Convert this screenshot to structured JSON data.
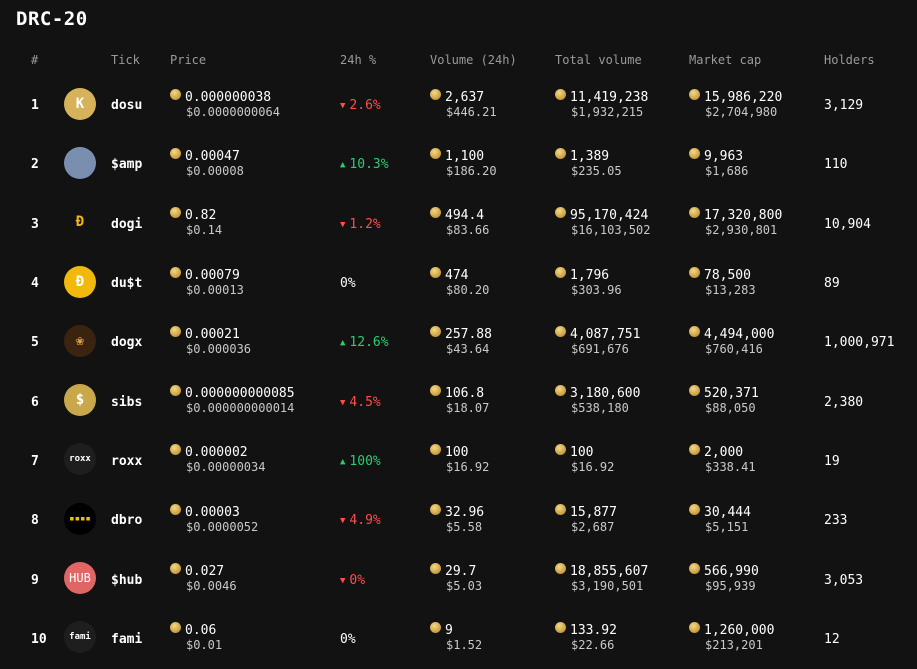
{
  "page": {
    "title": "DRC-20"
  },
  "columns": [
    "#",
    "Tick",
    "Price",
    "24h %",
    "Volume (24h)",
    "Total volume",
    "Market cap",
    "Holders"
  ],
  "colors": {
    "up": "#2ecc71",
    "down": "#ff4d4d",
    "background": "#121212"
  },
  "rows": [
    {
      "rank": "1",
      "tick": "dosu",
      "logo": {
        "text": "K",
        "bg": "#d6b25a",
        "fg": "#ffffff"
      },
      "price": "0.000000038",
      "price_usd": "$0.0000000064",
      "change": "2.6%",
      "change_dir": "down",
      "volume": "2,637",
      "volume_usd": "$446.21",
      "total_volume": "11,419,238",
      "total_volume_usd": "$1,932,215",
      "market_cap": "15,986,220",
      "market_cap_usd": "$2,704,980",
      "holders": "3,129"
    },
    {
      "rank": "2",
      "tick": "$amp",
      "logo": {
        "text": "",
        "bg": "#7a8fb0",
        "fg": "#ffffff"
      },
      "price": "0.00047",
      "price_usd": "$0.00008",
      "change": "10.3%",
      "change_dir": "up",
      "volume": "1,100",
      "volume_usd": "$186.20",
      "total_volume": "1,389",
      "total_volume_usd": "$235.05",
      "market_cap": "9,963",
      "market_cap_usd": "$1,686",
      "holders": "110"
    },
    {
      "rank": "3",
      "tick": "dogi",
      "logo": {
        "text": "Đ",
        "bg": "#121212",
        "fg": "#f2b711"
      },
      "price": "0.82",
      "price_usd": "$0.14",
      "change": "1.2%",
      "change_dir": "down",
      "volume": "494.4",
      "volume_usd": "$83.66",
      "total_volume": "95,170,424",
      "total_volume_usd": "$16,103,502",
      "market_cap": "17,320,800",
      "market_cap_usd": "$2,930,801",
      "holders": "10,904"
    },
    {
      "rank": "4",
      "tick": "du$t",
      "logo": {
        "text": "Đ",
        "bg": "#f0b90b",
        "fg": "#ffffff"
      },
      "price": "0.00079",
      "price_usd": "$0.00013",
      "change": "0%",
      "change_dir": "flat",
      "volume": "474",
      "volume_usd": "$80.20",
      "total_volume": "1,796",
      "total_volume_usd": "$303.96",
      "market_cap": "78,500",
      "market_cap_usd": "$13,283",
      "holders": "89"
    },
    {
      "rank": "5",
      "tick": "dogx",
      "logo": {
        "text": "❀",
        "bg": "#3a2410",
        "fg": "#e0a040"
      },
      "price": "0.00021",
      "price_usd": "$0.000036",
      "change": "12.6%",
      "change_dir": "up",
      "volume": "257.88",
      "volume_usd": "$43.64",
      "total_volume": "4,087,751",
      "total_volume_usd": "$691,676",
      "market_cap": "4,494,000",
      "market_cap_usd": "$760,416",
      "holders": "1,000,971"
    },
    {
      "rank": "6",
      "tick": "sibs",
      "logo": {
        "text": "$",
        "bg": "#c8a84a",
        "fg": "#ffffff"
      },
      "price": "0.000000000085",
      "price_usd": "$0.000000000014",
      "change": "4.5%",
      "change_dir": "down",
      "volume": "106.8",
      "volume_usd": "$18.07",
      "total_volume": "3,180,600",
      "total_volume_usd": "$538,180",
      "market_cap": "520,371",
      "market_cap_usd": "$88,050",
      "holders": "2,380"
    },
    {
      "rank": "7",
      "tick": "roxx",
      "logo": {
        "text": "roxx",
        "bg": "#1e1e1e",
        "fg": "#ffffff"
      },
      "price": "0.000002",
      "price_usd": "$0.00000034",
      "change": "100%",
      "change_dir": "up",
      "volume": "100",
      "volume_usd": "$16.92",
      "total_volume": "100",
      "total_volume_usd": "$16.92",
      "market_cap": "2,000",
      "market_cap_usd": "$338.41",
      "holders": "19"
    },
    {
      "rank": "8",
      "tick": "dbro",
      "logo": {
        "text": "▪▪▪▪",
        "bg": "#000000",
        "fg": "#f0c000"
      },
      "price": "0.00003",
      "price_usd": "$0.0000052",
      "change": "4.9%",
      "change_dir": "down",
      "volume": "32.96",
      "volume_usd": "$5.58",
      "total_volume": "15,877",
      "total_volume_usd": "$2,687",
      "market_cap": "30,444",
      "market_cap_usd": "$5,151",
      "holders": "233"
    },
    {
      "rank": "9",
      "tick": "$hub",
      "logo": {
        "text": "HUB",
        "bg": "#e06666",
        "fg": "#ffffff"
      },
      "price": "0.027",
      "price_usd": "$0.0046",
      "change": "0%",
      "change_dir": "down",
      "volume": "29.7",
      "volume_usd": "$5.03",
      "total_volume": "18,855,607",
      "total_volume_usd": "$3,190,501",
      "market_cap": "566,990",
      "market_cap_usd": "$95,939",
      "holders": "3,053"
    },
    {
      "rank": "10",
      "tick": "fami",
      "logo": {
        "text": "fami",
        "bg": "#1e1e1e",
        "fg": "#ffffff"
      },
      "price": "0.06",
      "price_usd": "$0.01",
      "change": "0%",
      "change_dir": "flat",
      "volume": "9",
      "volume_usd": "$1.52",
      "total_volume": "133.92",
      "total_volume_usd": "$22.66",
      "market_cap": "1,260,000",
      "market_cap_usd": "$213,201",
      "holders": "12"
    }
  ]
}
